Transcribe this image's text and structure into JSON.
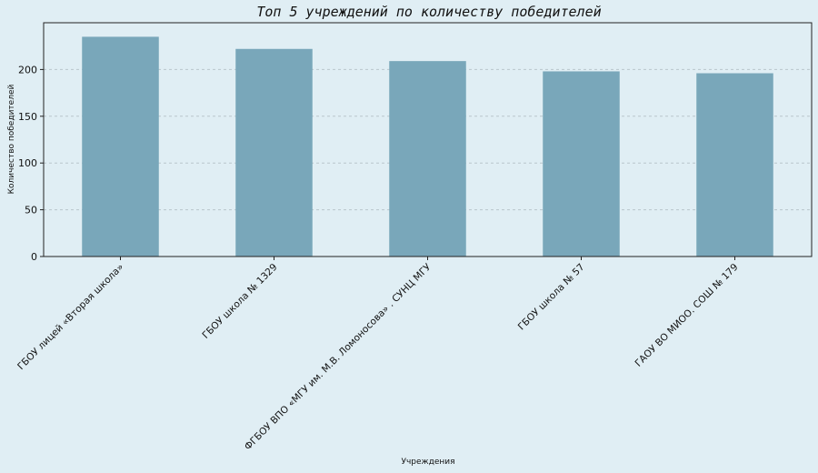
{
  "chart_data": {
    "type": "bar",
    "title": "Топ 5 учреждений по количеству победителей",
    "xlabel": "Учреждения",
    "ylabel": "Количество победителей",
    "categories": [
      "ГБОУ лицей «Вторая школа»",
      "ГБОУ школа № 1329",
      "ФГБОУ ВПО «МГУ им. М.В. Ломоносова» . СУНЦ МГУ",
      "ГБОУ школа № 57",
      "ГАОУ ВО МИОО. СОШ № 179"
    ],
    "values": [
      235,
      222,
      209,
      198,
      196
    ],
    "ylim": [
      0,
      250
    ],
    "yticks": [
      0,
      50,
      100,
      150,
      200
    ],
    "grid": "horizontal dashed",
    "legend": "none",
    "colors": {
      "bar": "#79a7ba",
      "background": "#e0eef4",
      "grid": "#b9c6cc",
      "axis": "#222222"
    }
  }
}
